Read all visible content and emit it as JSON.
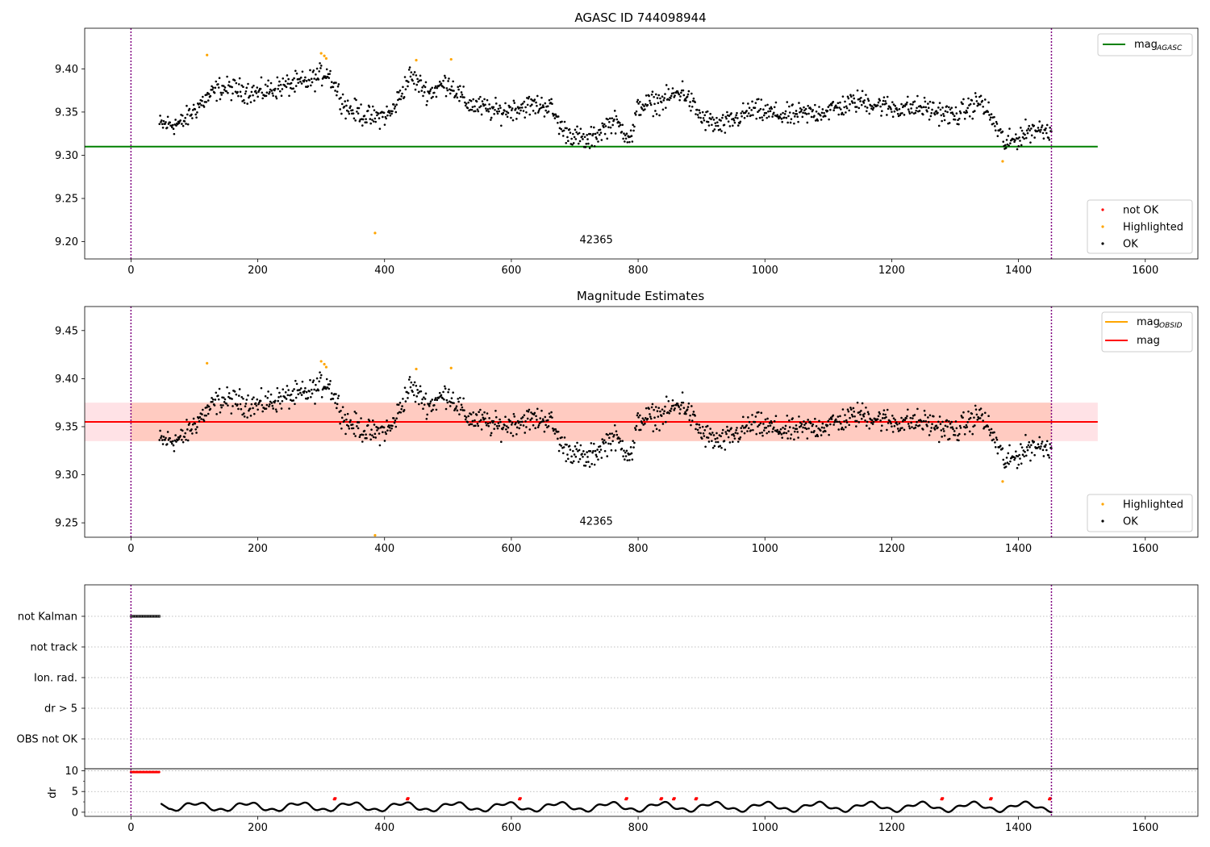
{
  "chart_data": [
    {
      "type": "scatter",
      "title": "AGASC ID 744098944",
      "xlim": [
        -73,
        1683
      ],
      "ylim": [
        9.18,
        9.447
      ],
      "xticks": [
        "0",
        "200",
        "400",
        "600",
        "800",
        "1000",
        "1200",
        "1400",
        "1600"
      ],
      "yticks": [
        "9.20",
        "9.25",
        "9.30",
        "9.35",
        "9.40"
      ],
      "vlines": [
        0,
        1452
      ],
      "annotation": {
        "text": "42365",
        "x": 725,
        "y": 9.19
      },
      "hline": {
        "name": "mag",
        "subscript": "AGASC",
        "value": 9.31,
        "xrange": [
          -73,
          1525
        ],
        "color": "#008000"
      },
      "legend_points": [
        {
          "name": "not OK",
          "color": "#ff0000"
        },
        {
          "name": "Highlighted",
          "color": "#ffa500"
        },
        {
          "name": "OK",
          "color": "#000000"
        }
      ],
      "highlighted": [
        [
          120,
          9.416
        ],
        [
          300,
          9.418
        ],
        [
          305,
          9.415
        ],
        [
          308,
          9.412
        ],
        [
          385,
          9.21
        ],
        [
          450,
          9.41
        ],
        [
          505,
          9.411
        ],
        [
          1375,
          9.293
        ]
      ],
      "series_profile": [
        [
          45,
          9.335
        ],
        [
          80,
          9.337
        ],
        [
          110,
          9.36
        ],
        [
          140,
          9.378
        ],
        [
          170,
          9.376
        ],
        [
          200,
          9.372
        ],
        [
          240,
          9.38
        ],
        [
          280,
          9.385
        ],
        [
          310,
          9.397
        ],
        [
          340,
          9.355
        ],
        [
          380,
          9.343
        ],
        [
          410,
          9.348
        ],
        [
          440,
          9.392
        ],
        [
          470,
          9.372
        ],
        [
          500,
          9.385
        ],
        [
          530,
          9.36
        ],
        [
          580,
          9.35
        ],
        [
          620,
          9.357
        ],
        [
          660,
          9.358
        ],
        [
          680,
          9.33
        ],
        [
          720,
          9.315
        ],
        [
          760,
          9.34
        ],
        [
          790,
          9.32
        ],
        [
          800,
          9.357
        ],
        [
          840,
          9.363
        ],
        [
          870,
          9.375
        ],
        [
          900,
          9.343
        ],
        [
          930,
          9.333
        ],
        [
          980,
          9.352
        ],
        [
          1040,
          9.345
        ],
        [
          1100,
          9.352
        ],
        [
          1150,
          9.363
        ],
        [
          1200,
          9.355
        ],
        [
          1250,
          9.355
        ],
        [
          1300,
          9.345
        ],
        [
          1340,
          9.363
        ],
        [
          1360,
          9.34
        ],
        [
          1380,
          9.312
        ],
        [
          1420,
          9.33
        ],
        [
          1450,
          9.33
        ]
      ]
    },
    {
      "type": "scatter",
      "title": "Magnitude Estimates",
      "xlim": [
        -73,
        1683
      ],
      "ylim": [
        9.235,
        9.475
      ],
      "xticks": [
        "0",
        "200",
        "400",
        "600",
        "800",
        "1000",
        "1200",
        "1400",
        "1600"
      ],
      "yticks": [
        "9.25",
        "9.30",
        "9.35",
        "9.40",
        "9.45"
      ],
      "vlines": [
        0,
        1452
      ],
      "annotation": {
        "text": "42365",
        "x": 725,
        "y": 9.244
      },
      "mag_line": {
        "name": "mag",
        "value": 9.355,
        "color": "#ff0000"
      },
      "mag_band": {
        "low": 9.335,
        "high": 9.375,
        "color": "#ffb6c1"
      },
      "obsid_line": {
        "name": "mag",
        "subscript": "OBSID",
        "value": 9.355,
        "xrange": [
          0,
          1452
        ],
        "color": "#ffa500"
      },
      "obsid_band": {
        "low": 9.335,
        "high": 9.375,
        "color": "#ffa07a"
      },
      "legend_points": [
        {
          "name": "Highlighted",
          "color": "#ffa500"
        },
        {
          "name": "OK",
          "color": "#000000"
        }
      ],
      "highlighted": [
        [
          120,
          9.416
        ],
        [
          300,
          9.418
        ],
        [
          305,
          9.415
        ],
        [
          308,
          9.412
        ],
        [
          385,
          9.237
        ],
        [
          450,
          9.41
        ],
        [
          505,
          9.411
        ],
        [
          1375,
          9.293
        ]
      ]
    },
    {
      "type": "scatter",
      "title": "",
      "flags_categories": [
        "not Kalman",
        "not track",
        "Ion. rad.",
        "dr > 5",
        "OBS not OK"
      ],
      "flag_spans": [
        {
          "category": "not Kalman",
          "x": [
            0,
            45
          ]
        }
      ],
      "dr_ylabel": "dr",
      "dr_yticks": [
        "0",
        "5",
        "10"
      ],
      "dr_ylim": [
        -1,
        10.5
      ],
      "dr_start_span": {
        "x": [
          0,
          45
        ],
        "value": 9.7
      },
      "dr_not_ok_x": [
        320,
        435,
        612,
        780,
        835,
        855,
        890,
        1278,
        1355,
        1448
      ],
      "xticks": [
        "0",
        "200",
        "400",
        "600",
        "800",
        "1000",
        "1200",
        "1400",
        "1600"
      ],
      "vlines": [
        0,
        1452
      ]
    }
  ]
}
